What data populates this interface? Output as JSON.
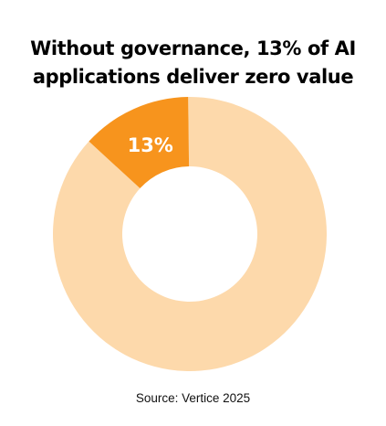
{
  "chart_data": {
    "type": "pie",
    "title_lines": [
      "Without governance, 13% of AI",
      "applications deliver zero value"
    ],
    "slices": [
      {
        "value": 13,
        "label": "13%",
        "color": "#f7941d"
      },
      {
        "value": 87,
        "label": "",
        "color": "#fdd9ab"
      }
    ],
    "source": "Source: Vertice 2025"
  }
}
